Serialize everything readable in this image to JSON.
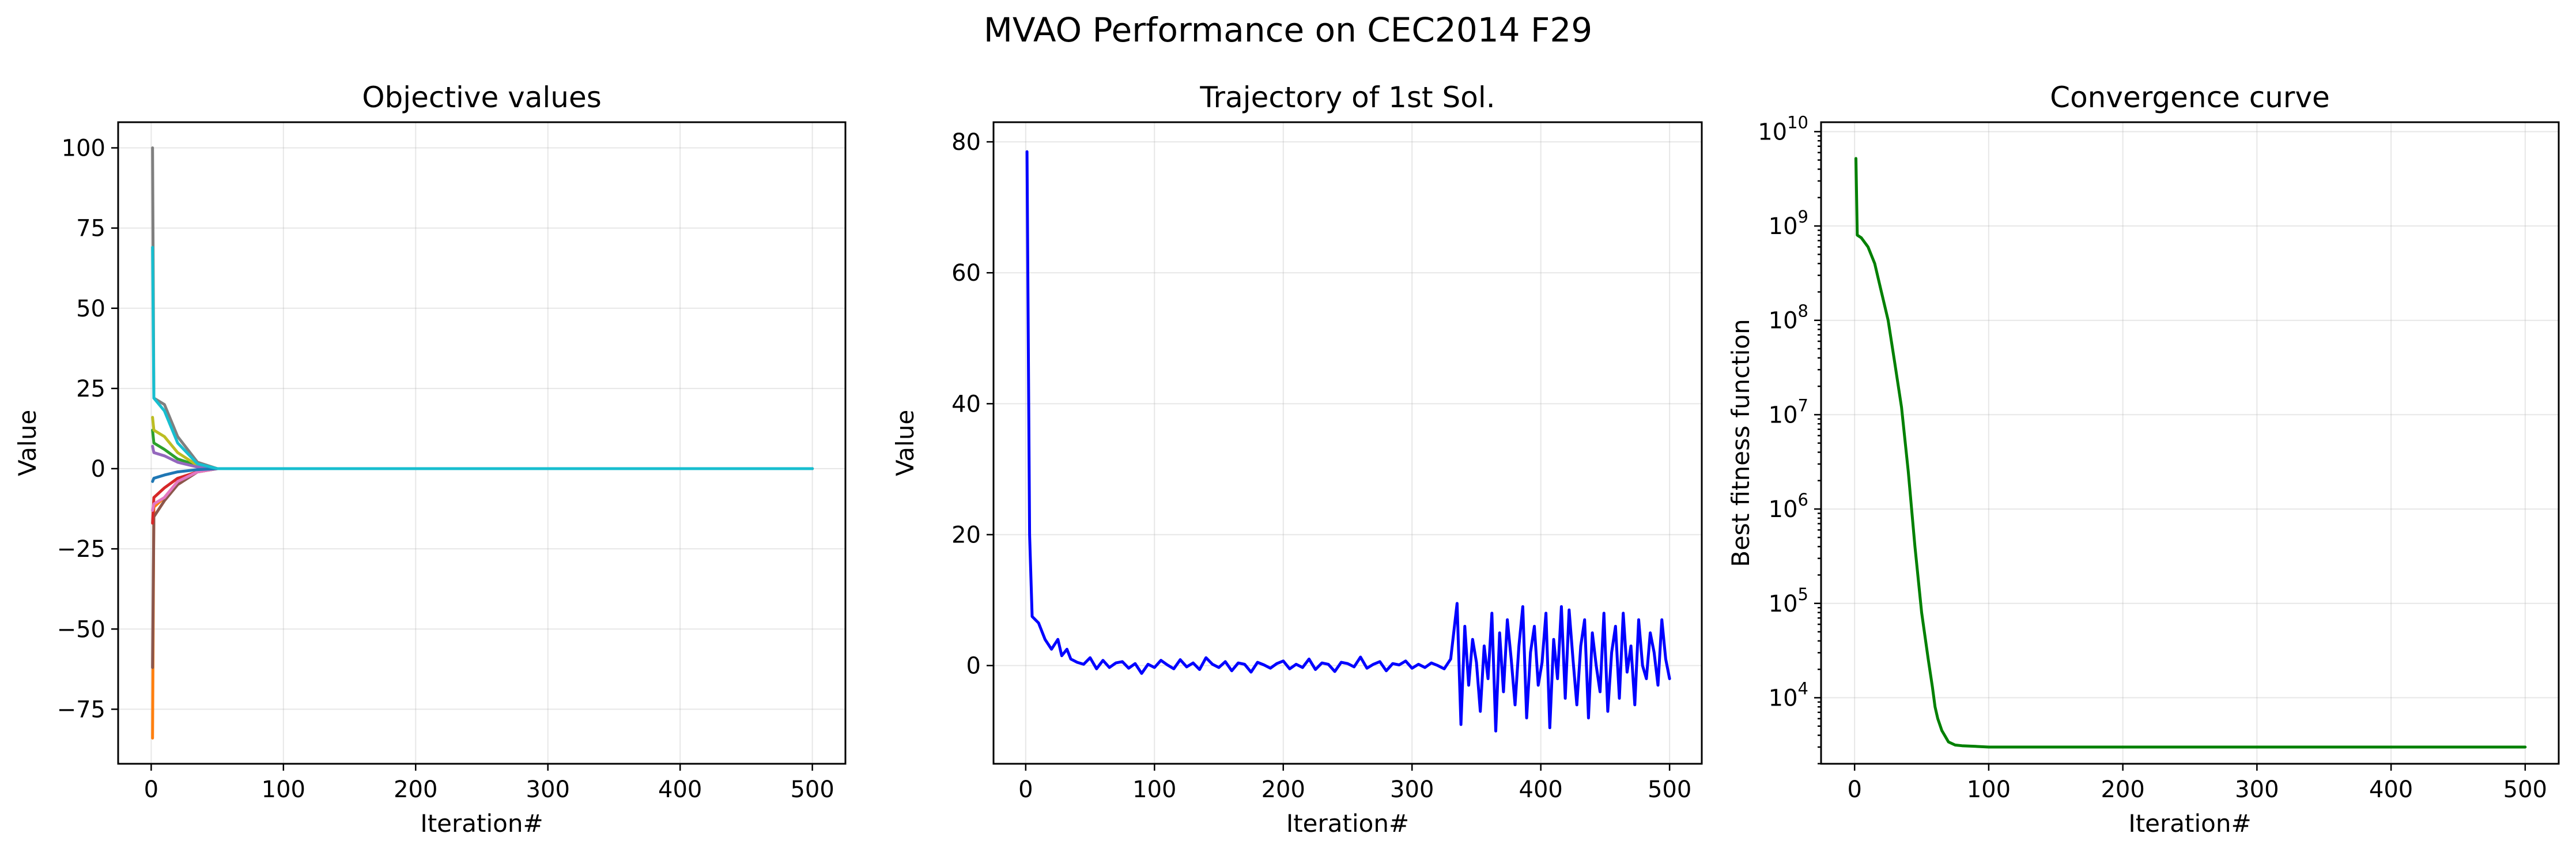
{
  "figure": {
    "title": "MVAO Performance on CEC2014 F29"
  },
  "chart_data": [
    {
      "type": "line",
      "title": "Objective values",
      "xlabel": "Iteration#",
      "ylabel": "Value",
      "xlim": [
        -25,
        525
      ],
      "ylim": [
        -92,
        108
      ],
      "yscale": "linear",
      "grid": true,
      "xticks": [
        0,
        100,
        200,
        300,
        400,
        500
      ],
      "yticks": [
        -75,
        -50,
        -25,
        0,
        25,
        50,
        75,
        100
      ],
      "series": [
        {
          "color": "#7f7f7f",
          "x": [
            1,
            2,
            10,
            20,
            35,
            50,
            500
          ],
          "y": [
            100,
            22,
            20,
            10,
            2,
            0,
            0
          ]
        },
        {
          "color": "#ff7f0e",
          "x": [
            1,
            2,
            10,
            20,
            35,
            50,
            500
          ],
          "y": [
            -84,
            -12,
            -9,
            -4,
            -1,
            0,
            0
          ]
        },
        {
          "color": "#8c564b",
          "x": [
            1,
            2,
            10,
            20,
            35,
            50,
            500
          ],
          "y": [
            -62,
            -15,
            -10,
            -5,
            -1,
            0,
            0
          ]
        },
        {
          "color": "#d62728",
          "x": [
            1,
            2,
            10,
            20,
            35,
            50,
            500
          ],
          "y": [
            -17,
            -9,
            -6,
            -3,
            -1,
            0,
            0
          ]
        },
        {
          "color": "#e377c2",
          "x": [
            1,
            2,
            10,
            20,
            35,
            50,
            500
          ],
          "y": [
            -13,
            -11,
            -9,
            -4,
            -1,
            0,
            0
          ]
        },
        {
          "color": "#2ca02c",
          "x": [
            1,
            2,
            10,
            20,
            35,
            50,
            500
          ],
          "y": [
            12,
            8,
            6,
            3,
            1,
            0,
            0
          ]
        },
        {
          "color": "#bcbd22",
          "x": [
            1,
            2,
            10,
            20,
            35,
            50,
            500
          ],
          "y": [
            16,
            12,
            10,
            5,
            1,
            0,
            0
          ]
        },
        {
          "color": "#9467bd",
          "x": [
            1,
            2,
            10,
            20,
            35,
            50,
            500
          ],
          "y": [
            7,
            5,
            4,
            2,
            0.5,
            0,
            0
          ]
        },
        {
          "color": "#1f77b4",
          "x": [
            1,
            2,
            10,
            20,
            35,
            50,
            500
          ],
          "y": [
            -4,
            -3,
            -2,
            -1,
            -0.3,
            0,
            0
          ]
        },
        {
          "color": "#17becf",
          "x": [
            1,
            2,
            10,
            20,
            35,
            50,
            500
          ],
          "y": [
            69,
            22,
            18,
            8,
            1.5,
            0,
            0
          ]
        }
      ]
    },
    {
      "type": "line",
      "title": "Trajectory of 1st Sol.",
      "xlabel": "Iteration#",
      "ylabel": "Value",
      "xlim": [
        -25,
        525
      ],
      "ylim": [
        -15,
        83
      ],
      "yscale": "linear",
      "grid": true,
      "xticks": [
        0,
        100,
        200,
        300,
        400,
        500
      ],
      "yticks": [
        0,
        20,
        40,
        60,
        80
      ],
      "series": [
        {
          "color": "#0000ff",
          "x": [
            1,
            3,
            5,
            10,
            15,
            20,
            25,
            28,
            32,
            35,
            40,
            45,
            50,
            55,
            60,
            65,
            70,
            75,
            80,
            85,
            90,
            95,
            100,
            105,
            110,
            115,
            120,
            125,
            130,
            135,
            140,
            145,
            150,
            155,
            160,
            165,
            170,
            175,
            180,
            185,
            190,
            195,
            200,
            205,
            210,
            215,
            220,
            225,
            230,
            235,
            240,
            245,
            250,
            255,
            260,
            265,
            270,
            275,
            280,
            285,
            290,
            295,
            300,
            305,
            310,
            315,
            320,
            325,
            330,
            335,
            338,
            341,
            344,
            347,
            350,
            353,
            356,
            359,
            362,
            365,
            368,
            371,
            374,
            377,
            380,
            383,
            386,
            389,
            392,
            395,
            398,
            401,
            404,
            407,
            410,
            413,
            416,
            419,
            422,
            425,
            428,
            431,
            434,
            437,
            440,
            443,
            446,
            449,
            452,
            455,
            458,
            461,
            464,
            467,
            470,
            473,
            476,
            479,
            482,
            485,
            488,
            491,
            494,
            497,
            500
          ],
          "y": [
            78.5,
            20,
            7.5,
            6.5,
            4,
            2.5,
            4,
            1.5,
            2.5,
            1,
            0.5,
            0.2,
            1.2,
            -0.5,
            0.8,
            -0.3,
            0.4,
            0.6,
            -0.4,
            0.3,
            -1.2,
            0.2,
            -0.3,
            0.8,
            0.1,
            -0.5,
            0.9,
            -0.2,
            0.4,
            -0.6,
            1.2,
            0.2,
            -0.3,
            0.6,
            -0.8,
            0.4,
            0.2,
            -1.0,
            0.5,
            0.1,
            -0.4,
            0.3,
            0.7,
            -0.5,
            0.2,
            -0.3,
            1.0,
            -0.6,
            0.4,
            0.2,
            -0.9,
            0.5,
            0.3,
            -0.2,
            1.3,
            -0.4,
            0.2,
            0.6,
            -0.8,
            0.3,
            0.1,
            0.7,
            -0.4,
            0.2,
            -0.3,
            0.4,
            0.0,
            -0.5,
            1.0,
            9.5,
            -9.0,
            6.0,
            -3.0,
            4.0,
            0.5,
            -7.0,
            3.0,
            -2.0,
            8.0,
            -10.0,
            5.0,
            -4.0,
            7.0,
            1.0,
            -6.0,
            3.0,
            9.0,
            -8.0,
            2.0,
            6.0,
            -3.0,
            0.5,
            8.0,
            -9.5,
            4.0,
            -2.0,
            9.0,
            -5.0,
            8.5,
            1.0,
            -6.0,
            3.0,
            7.0,
            -8.0,
            5.0,
            0.0,
            -4.0,
            8.0,
            -7.0,
            2.0,
            6.0,
            -5.0,
            8.0,
            -1.0,
            3.0,
            -6.0,
            7.0,
            0.0,
            -2.0,
            5.0,
            2.0,
            -3.0,
            7.0,
            1.0,
            -2.0
          ]
        }
      ]
    },
    {
      "type": "line",
      "title": "Convergence curve",
      "xlabel": "Iteration#",
      "ylabel": "Best fitness function",
      "xlim": [
        -25,
        525
      ],
      "yscale": "log",
      "ylim_log10": [
        3.3,
        10.1
      ],
      "grid": true,
      "xticks": [
        0,
        100,
        200,
        300,
        400,
        500
      ],
      "ytick_exponents": [
        4,
        5,
        6,
        7,
        8,
        9,
        10
      ],
      "series": [
        {
          "color": "#008000",
          "x": [
            1,
            2,
            5,
            10,
            15,
            20,
            25,
            30,
            35,
            40,
            45,
            50,
            55,
            58,
            60,
            62,
            65,
            70,
            75,
            80,
            90,
            100,
            110,
            120,
            200,
            300,
            400,
            500
          ],
          "y": [
            5200000000.0,
            800000000.0,
            750000000.0,
            600000000.0,
            400000000.0,
            200000000.0,
            100000000.0,
            35000000.0,
            12000000.0,
            2500000.0,
            400000.0,
            80000.0,
            25000.0,
            13000.0,
            8000.0,
            6000.0,
            4500.0,
            3400.0,
            3150.0,
            3100.0,
            3050.0,
            3000.0,
            3000.0,
            3000.0,
            3000.0,
            3000.0,
            3000.0,
            3000.0
          ]
        }
      ]
    }
  ],
  "colors": {
    "grid": "#b0b0b0",
    "frame": "#000000"
  }
}
